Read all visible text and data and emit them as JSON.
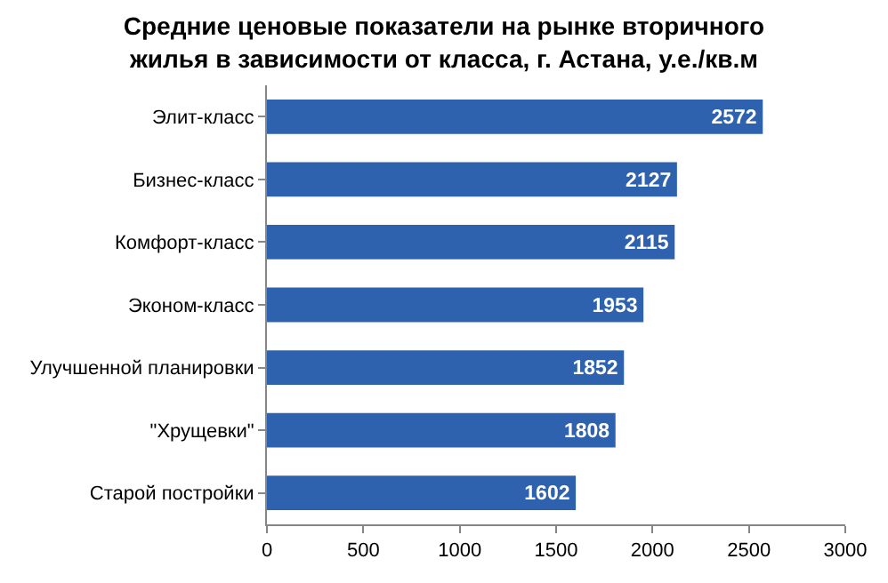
{
  "chart_data": {
    "type": "bar",
    "orientation": "horizontal",
    "title": "Средние ценовые показатели на рынке вторичного\nжилья в зависимости от класса, г. Астана, у.е./кв.м",
    "categories": [
      "Элит-класс",
      "Бизнес-класс",
      "Комфорт-класс",
      "Эконом-класс",
      "Улучшенной планировки",
      "\"Хрущевки\"",
      "Старой постройки"
    ],
    "values": [
      2572,
      2127,
      2115,
      1953,
      1852,
      1808,
      1602
    ],
    "color": "#2e62ae",
    "xlim": [
      0,
      3000
    ],
    "xticks": [
      0,
      500,
      1000,
      1500,
      2000,
      2500,
      3000
    ],
    "data_labels": true,
    "grid": false,
    "legend": false
  }
}
